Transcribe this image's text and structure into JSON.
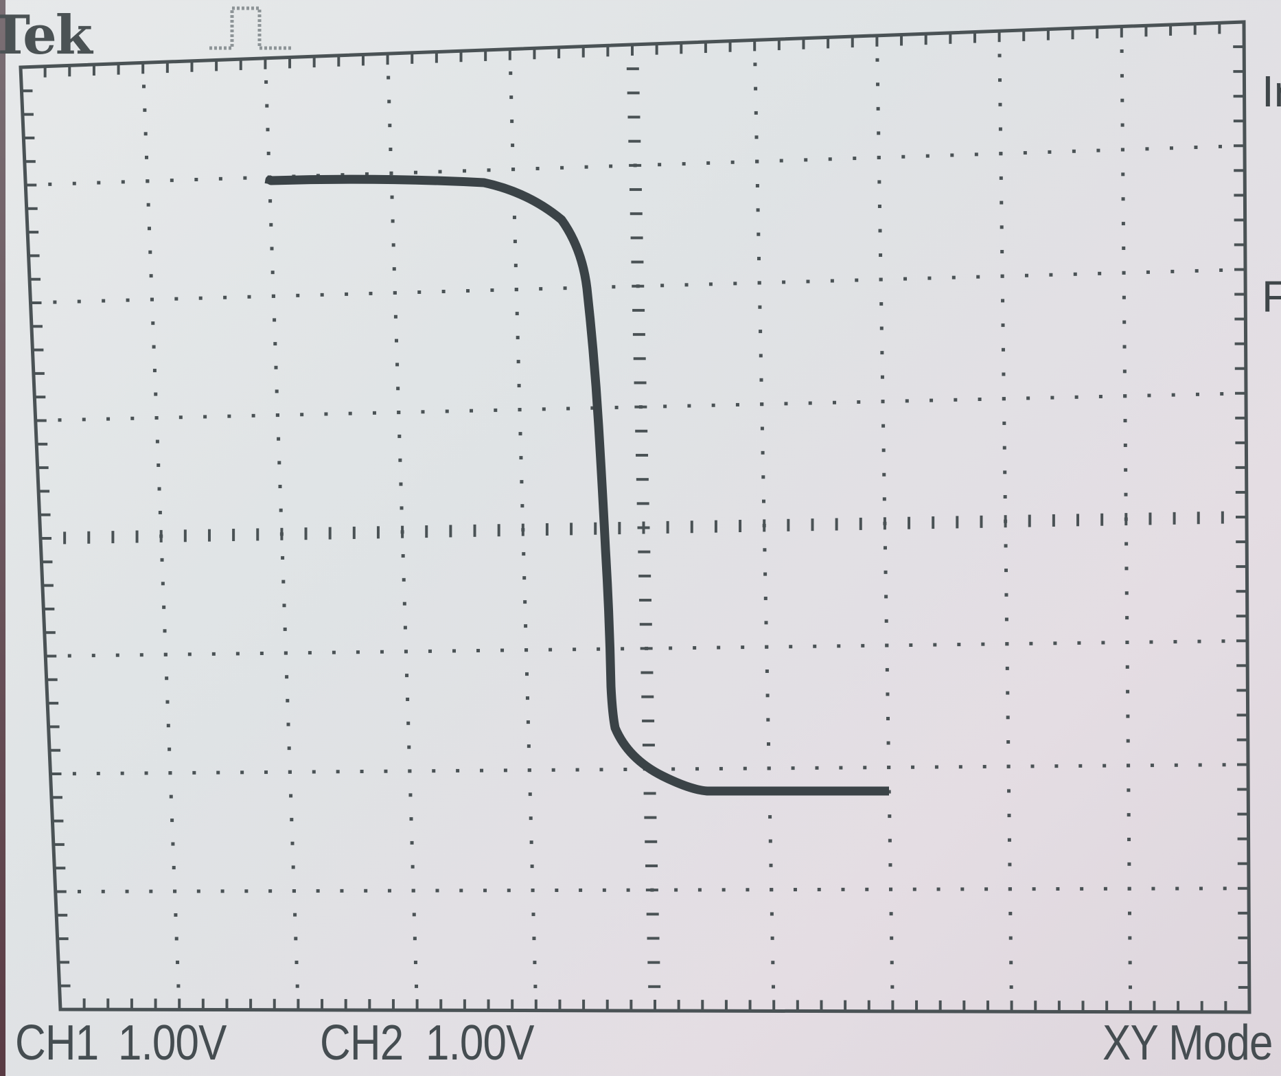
{
  "brand": "Tek",
  "footer": {
    "ch1_label": "CH1",
    "ch1_scale": "1.00V",
    "ch2_label": "CH2",
    "ch2_scale": "1.00V",
    "mode": "XY Mode"
  },
  "side_labels": [
    "Ir",
    "F"
  ],
  "colors": {
    "trace": "#3b4347",
    "graticule": "#4a5255",
    "background": "#e4e6e7"
  },
  "icons": {
    "trigger": "pulse-trigger-icon"
  }
}
